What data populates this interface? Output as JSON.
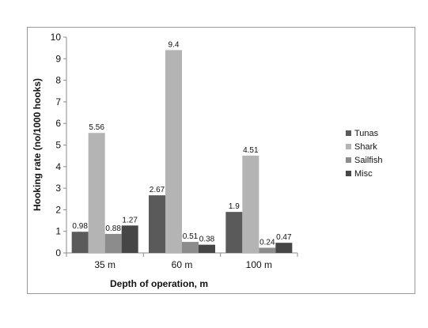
{
  "chart_data": {
    "type": "bar",
    "categories": [
      "35 m",
      "60 m",
      "100 m"
    ],
    "series": [
      {
        "name": "Tunas",
        "values": [
          0.98,
          2.67,
          1.9
        ],
        "labels": [
          "0.98",
          "2.67",
          "1.9"
        ],
        "color": "#5a5a5a"
      },
      {
        "name": "Shark",
        "values": [
          5.56,
          9.4,
          4.51
        ],
        "labels": [
          "5.56",
          "9.4",
          "4.51"
        ],
        "color": "#b4b4b4"
      },
      {
        "name": "Sailfish",
        "values": [
          0.88,
          0.51,
          0.24
        ],
        "labels": [
          "0.88",
          "0.51",
          "0.24"
        ],
        "color": "#8c8c8c"
      },
      {
        "name": "Misc",
        "values": [
          1.27,
          0.38,
          0.47
        ],
        "labels": [
          "1.27",
          "0.38",
          "0.47"
        ],
        "color": "#464646"
      }
    ],
    "xlabel": "Depth of operation, m",
    "ylabel": "Hooking rate (no/1000 hooks)",
    "ylim": [
      0,
      10
    ],
    "yticks": [
      "0",
      "1",
      "2",
      "3",
      "4",
      "5",
      "6",
      "7",
      "8",
      "9",
      "10"
    ],
    "grid": false,
    "legend_position": "right"
  }
}
